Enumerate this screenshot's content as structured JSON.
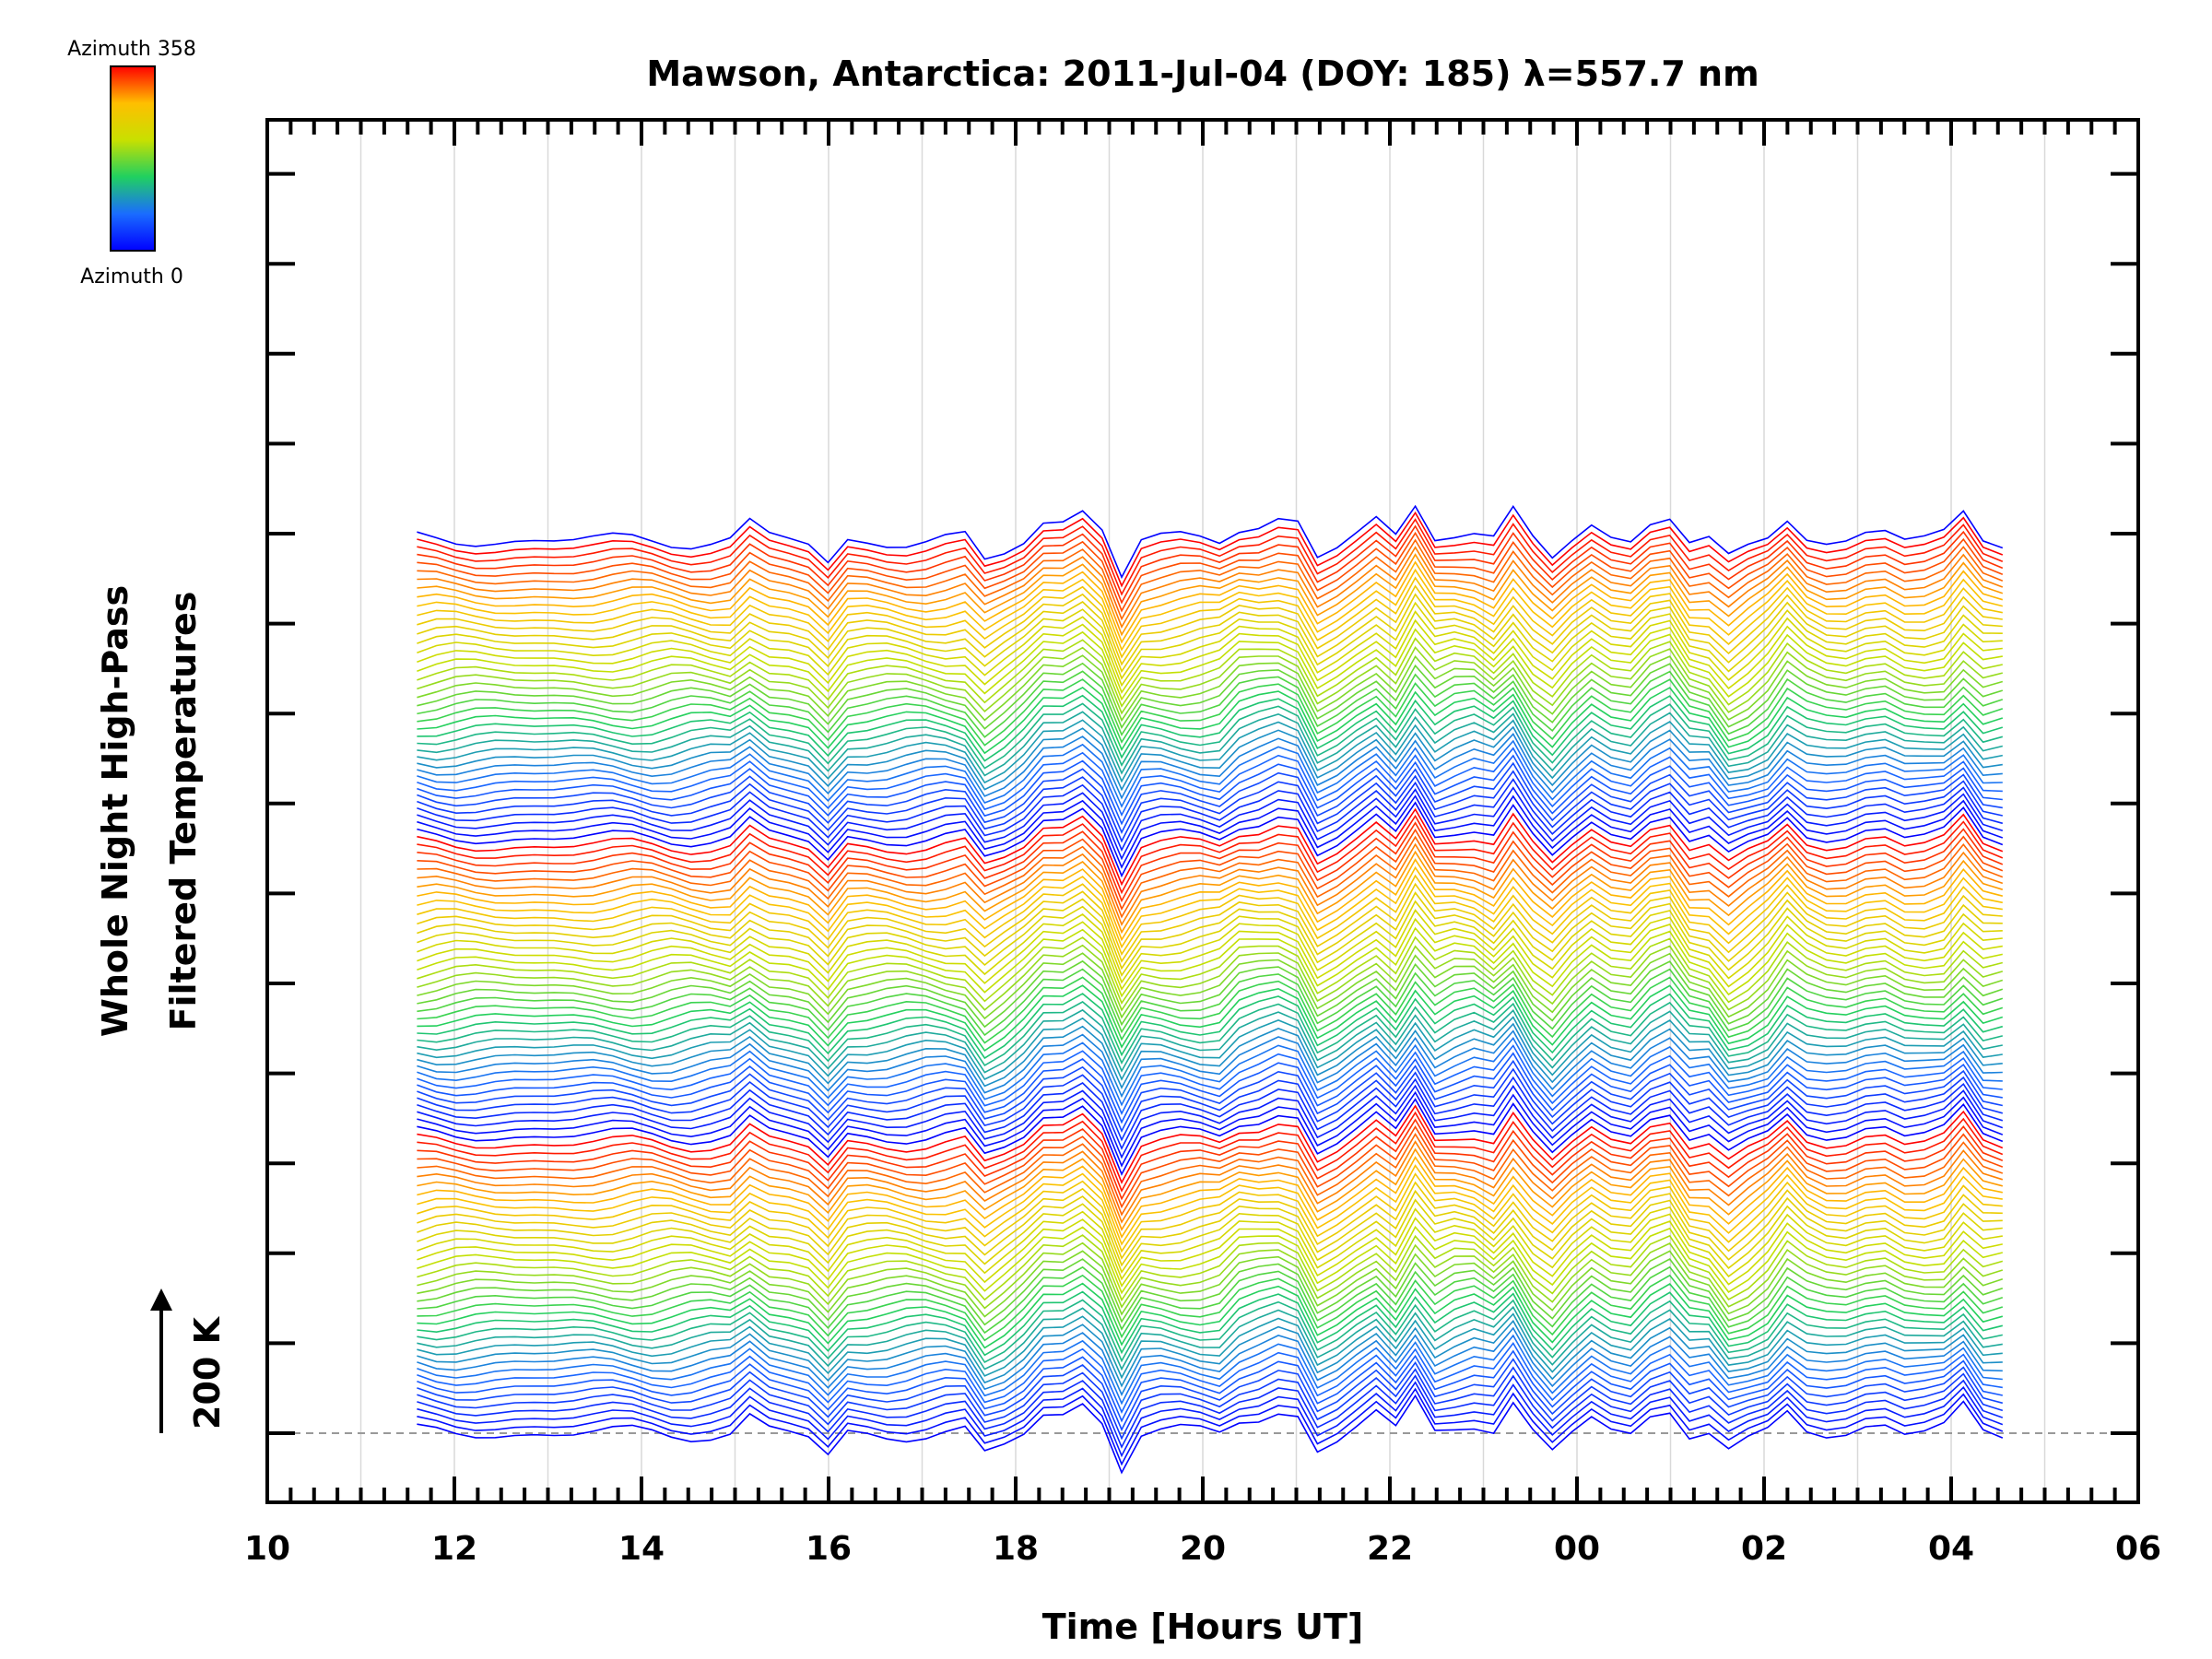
{
  "chart_data": {
    "type": "line",
    "title": "Mawson, Antarctica: 2011-Jul-04 (DOY: 185) λ=557.7 nm",
    "xlabel": "Time [Hours UT]",
    "ylabel_line1": "Whole Night High-Pass",
    "ylabel_line2": "Filtered Temperatures",
    "scale_label": "200 K",
    "x_tick_labels": [
      "10",
      "12",
      "14",
      "16",
      "18",
      "20",
      "22",
      "00",
      "02",
      "04",
      "06"
    ],
    "xlim": [
      10,
      30
    ],
    "data_x_range": [
      11.6,
      28.55
    ],
    "series_count": 115,
    "colorbar": {
      "top_label": "Azimuth 358",
      "bottom_label": "Azimuth 0",
      "colors": [
        "#ff0000",
        "#ffbf00",
        "#c8e000",
        "#20d060",
        "#1a6cff",
        "#0000ff"
      ]
    },
    "grid": true
  }
}
